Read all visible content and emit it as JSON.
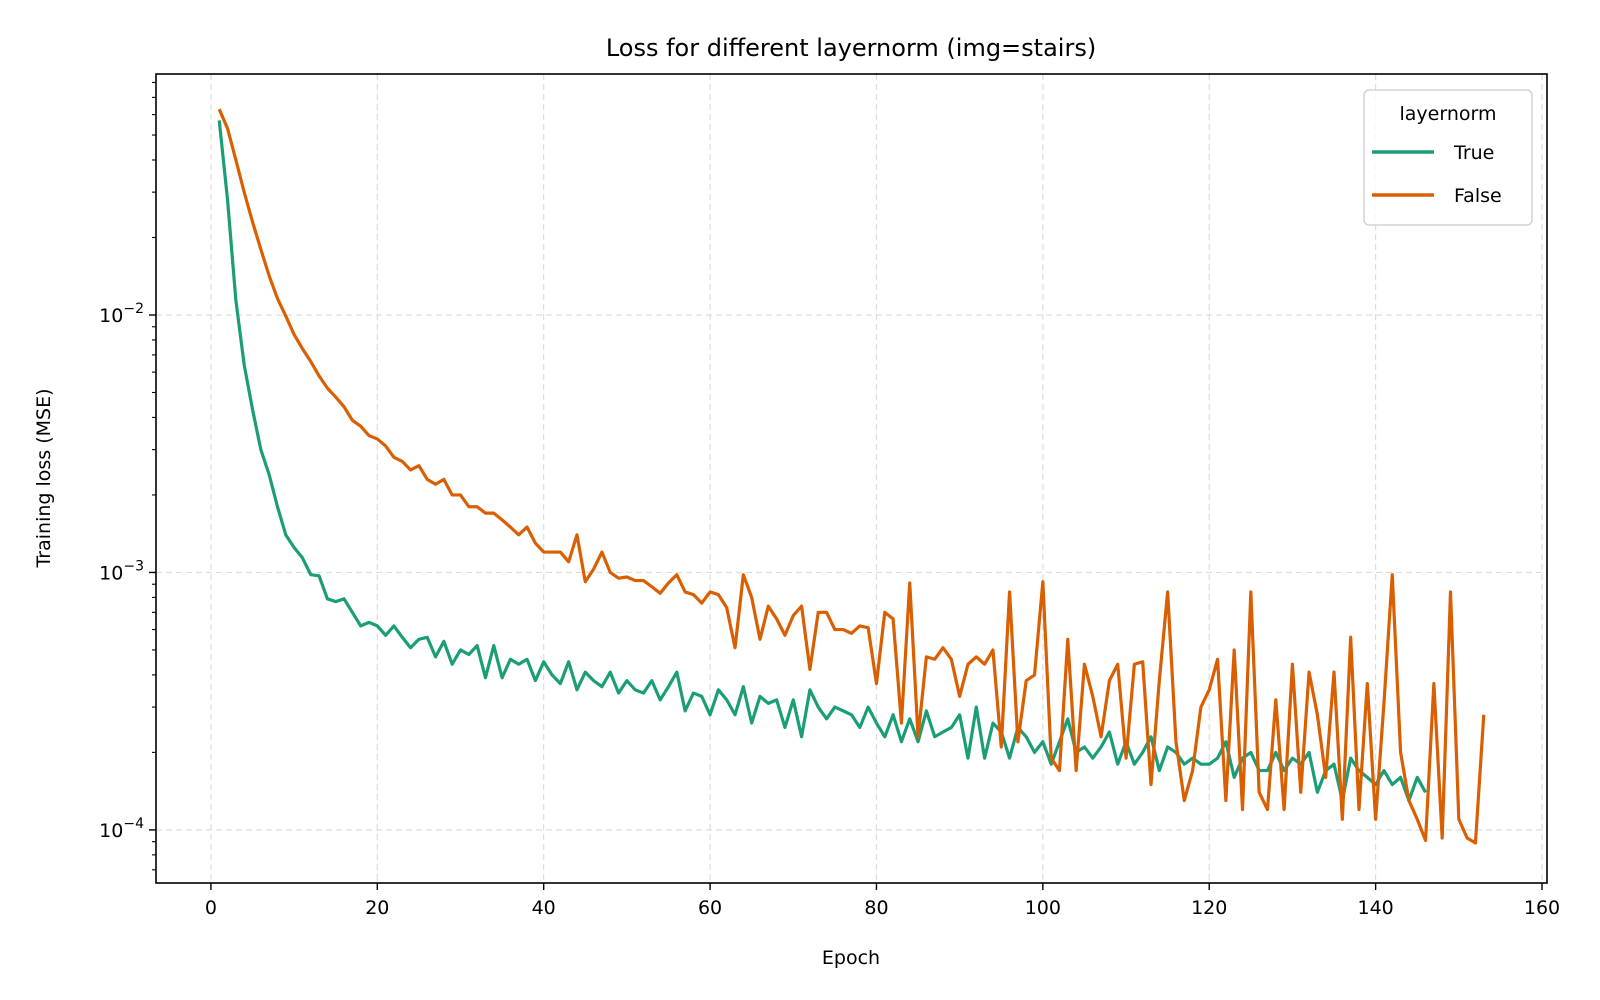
{
  "chart_data": {
    "type": "line",
    "title": "Loss for different layernorm (img=stairs)",
    "xlabel": "Epoch",
    "ylabel": "Training loss (MSE)",
    "yscale": "log",
    "xlim": [
      -6.6,
      160.6
    ],
    "ylim": [
      6.22e-05,
      0.0863
    ],
    "xticks": [
      0,
      20,
      40,
      60,
      80,
      100,
      120,
      140,
      160
    ],
    "xtick_labels": [
      "0",
      "20",
      "40",
      "60",
      "80",
      "100",
      "120",
      "140",
      "160"
    ],
    "yticks": [
      0.0001,
      0.001,
      0.01
    ],
    "ytick_labels": [
      {
        "base": "10",
        "exp": "−4"
      },
      {
        "base": "10",
        "exp": "−3"
      },
      {
        "base": "10",
        "exp": "−2"
      }
    ],
    "grid": true,
    "legend": {
      "title": "layernorm",
      "position": "top-right",
      "entries": [
        "True",
        "False"
      ]
    },
    "series": [
      {
        "name": "True",
        "color": "#1b9e77",
        "x_start": 1,
        "values": [
          0.057,
          0.028,
          0.0114,
          0.0064,
          0.0043,
          0.003,
          0.0024,
          0.0018,
          0.0014,
          0.00125,
          0.00114,
          0.00098,
          0.00097,
          0.00079,
          0.00077,
          0.00079,
          0.0007,
          0.00062,
          0.00064,
          0.00062,
          0.00057,
          0.00062,
          0.00056,
          0.00051,
          0.00055,
          0.00056,
          0.00047,
          0.00054,
          0.00044,
          0.0005,
          0.00048,
          0.00052,
          0.00039,
          0.00052,
          0.00039,
          0.00046,
          0.00044,
          0.00046,
          0.00038,
          0.00045,
          0.0004,
          0.00037,
          0.00045,
          0.00035,
          0.00041,
          0.00038,
          0.00036,
          0.00041,
          0.00034,
          0.00038,
          0.00035,
          0.00034,
          0.00038,
          0.00032,
          0.00036,
          0.00041,
          0.00029,
          0.00034,
          0.00033,
          0.00028,
          0.00035,
          0.00032,
          0.00028,
          0.00036,
          0.00026,
          0.00033,
          0.00031,
          0.00032,
          0.00025,
          0.00032,
          0.00023,
          0.00035,
          0.0003,
          0.00027,
          0.0003,
          0.00029,
          0.00028,
          0.00025,
          0.0003,
          0.00026,
          0.00023,
          0.00028,
          0.00022,
          0.00027,
          0.00022,
          0.00029,
          0.00023,
          0.00024,
          0.00025,
          0.00028,
          0.00019,
          0.0003,
          0.00019,
          0.00026,
          0.00024,
          0.00019,
          0.00025,
          0.00023,
          0.0002,
          0.00022,
          0.00018,
          0.00022,
          0.00027,
          0.0002,
          0.00021,
          0.00019,
          0.00021,
          0.00024,
          0.00018,
          0.00022,
          0.00018,
          0.0002,
          0.00023,
          0.00017,
          0.00021,
          0.0002,
          0.00018,
          0.00019,
          0.00018,
          0.00018,
          0.00019,
          0.00022,
          0.00016,
          0.00019,
          0.0002,
          0.00017,
          0.00017,
          0.0002,
          0.00017,
          0.00019,
          0.00018,
          0.0002,
          0.00014,
          0.00017,
          0.00018,
          0.00013,
          0.00019,
          0.00017,
          0.00016,
          0.00015,
          0.00017,
          0.00015,
          0.00016,
          0.00013,
          0.00016,
          0.00014
        ]
      },
      {
        "name": "False",
        "color": "#d95f02",
        "x_start": 1,
        "values": [
          0.063,
          0.053,
          0.04,
          0.03,
          0.023,
          0.018,
          0.0142,
          0.0116,
          0.0099,
          0.0084,
          0.0074,
          0.0066,
          0.0058,
          0.0052,
          0.0048,
          0.0044,
          0.0039,
          0.0037,
          0.0034,
          0.0033,
          0.0031,
          0.0028,
          0.0027,
          0.0025,
          0.0026,
          0.0023,
          0.0022,
          0.0023,
          0.002,
          0.002,
          0.0018,
          0.0018,
          0.0017,
          0.0017,
          0.0016,
          0.0015,
          0.0014,
          0.0015,
          0.0013,
          0.0012,
          0.0012,
          0.0012,
          0.0011,
          0.0014,
          0.00092,
          0.00103,
          0.0012,
          0.001,
          0.00095,
          0.00096,
          0.00093,
          0.00093,
          0.00088,
          0.00083,
          0.00091,
          0.00098,
          0.00084,
          0.00082,
          0.00076,
          0.00084,
          0.00082,
          0.00073,
          0.00051,
          0.00098,
          0.0008,
          0.00055,
          0.00074,
          0.00066,
          0.00057,
          0.00068,
          0.00074,
          0.00042,
          0.0007,
          0.0007,
          0.0006,
          0.0006,
          0.00058,
          0.00062,
          0.00061,
          0.00037,
          0.0007,
          0.00066,
          0.00026,
          0.00091,
          0.00023,
          0.00047,
          0.00046,
          0.00051,
          0.00046,
          0.00033,
          0.00044,
          0.00047,
          0.00044,
          0.0005,
          0.00021,
          0.00084,
          0.00022,
          0.00038,
          0.0004,
          0.00092,
          0.00019,
          0.00017,
          0.00055,
          0.00017,
          0.00044,
          0.00033,
          0.00023,
          0.00038,
          0.00044,
          0.00019,
          0.00044,
          0.00045,
          0.00015,
          0.00038,
          0.00084,
          0.00022,
          0.00013,
          0.00017,
          0.0003,
          0.00035,
          0.00046,
          0.00013,
          0.0005,
          0.00012,
          0.00084,
          0.00014,
          0.00012,
          0.00032,
          0.00012,
          0.00044,
          0.00014,
          0.00041,
          0.00028,
          0.00016,
          0.00041,
          0.00011,
          0.00056,
          0.00012,
          0.00037,
          0.00011,
          0.00031,
          0.00098,
          0.0002,
          0.00013,
          0.00011,
          9.1e-05,
          0.00037,
          9.3e-05,
          0.00084,
          0.00011,
          9.3e-05,
          8.9e-05,
          0.00028
        ]
      }
    ]
  }
}
